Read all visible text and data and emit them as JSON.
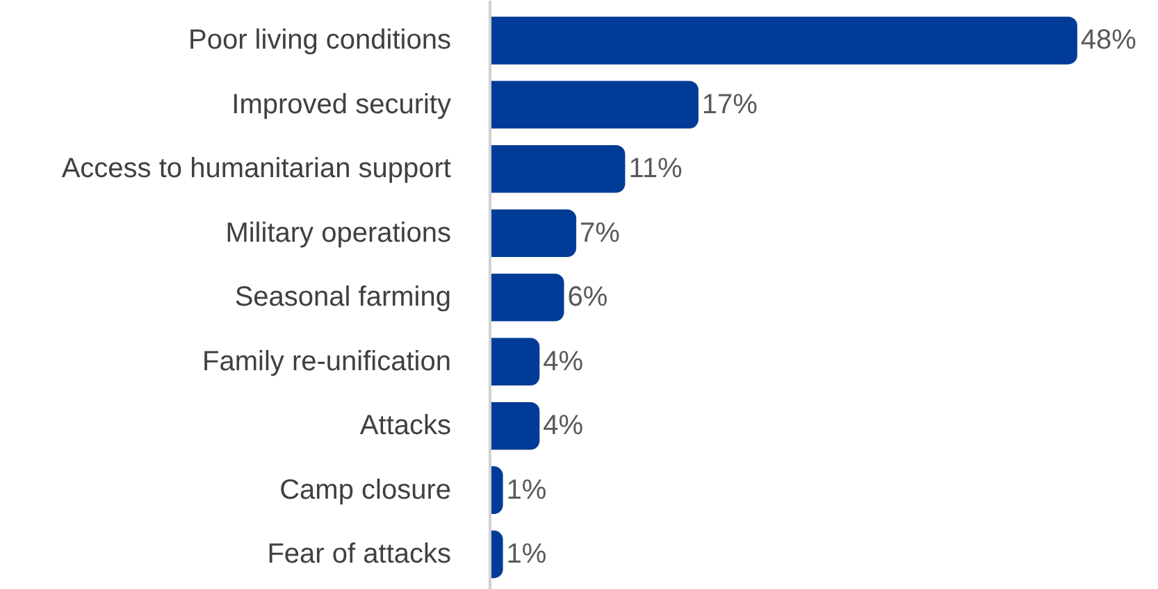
{
  "chart_data": {
    "type": "bar",
    "orientation": "horizontal",
    "categories": [
      "Poor living conditions",
      "Improved security",
      "Access to humanitarian support",
      "Military operations",
      "Seasonal farming",
      "Family re-unification",
      "Attacks",
      "Camp closure",
      "Fear of attacks"
    ],
    "values": [
      48,
      17,
      11,
      7,
      6,
      4,
      4,
      1,
      1
    ],
    "value_labels": [
      "48%",
      "17%",
      "11%",
      "7%",
      "6%",
      "4%",
      "4%",
      "1%",
      "1%"
    ],
    "color": "#003c97",
    "grid": false
  }
}
